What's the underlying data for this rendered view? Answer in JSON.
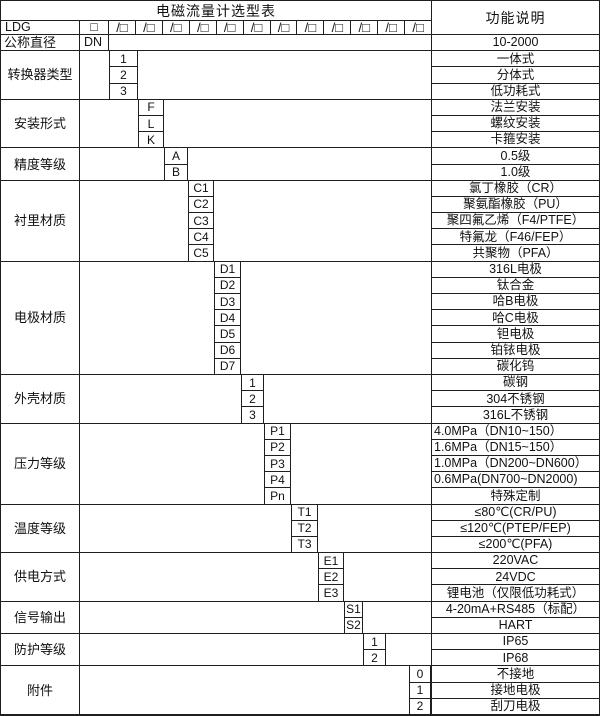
{
  "title": "电磁流量计选型表",
  "function_header": "功能说明",
  "model": {
    "prefix": "LDG",
    "first_box": "□",
    "option_box": "/□"
  },
  "dn": {
    "label": "公称直径",
    "code": "DN",
    "desc": "10-2000"
  },
  "categories": [
    {
      "label": "转换器类型",
      "options": [
        {
          "code": "1",
          "desc": "一体式"
        },
        {
          "code": "2",
          "desc": "分体式"
        },
        {
          "code": "3",
          "desc": "低功耗式"
        }
      ]
    },
    {
      "label": "安装形式",
      "options": [
        {
          "code": "F",
          "desc": "法兰安装"
        },
        {
          "code": "L",
          "desc": "螺纹安装"
        },
        {
          "code": "K",
          "desc": "卡箍安装"
        }
      ]
    },
    {
      "label": "精度等级",
      "options": [
        {
          "code": "A",
          "desc": "0.5级"
        },
        {
          "code": "B",
          "desc": "1.0级"
        }
      ]
    },
    {
      "label": "衬里材质",
      "options": [
        {
          "code": "C1",
          "desc": "氯丁橡胶（CR）"
        },
        {
          "code": "C2",
          "desc": "聚氨酯橡胶（PU）"
        },
        {
          "code": "C3",
          "desc": "聚四氟乙烯（F4/PTFE）"
        },
        {
          "code": "C4",
          "desc": "特氟龙（F46/FEP）"
        },
        {
          "code": "C5",
          "desc": "共聚物（PFA）"
        }
      ]
    },
    {
      "label": "电极材质",
      "options": [
        {
          "code": "D1",
          "desc": "316L电极"
        },
        {
          "code": "D2",
          "desc": "钛合金"
        },
        {
          "code": "D3",
          "desc": "哈B电极"
        },
        {
          "code": "D4",
          "desc": "哈C电极"
        },
        {
          "code": "D5",
          "desc": "钽电极"
        },
        {
          "code": "D6",
          "desc": "铂铱电极"
        },
        {
          "code": "D7",
          "desc": "碳化钨"
        }
      ]
    },
    {
      "label": "外壳材质",
      "options": [
        {
          "code": "1",
          "desc": "碳钢"
        },
        {
          "code": "2",
          "desc": "304不锈钢"
        },
        {
          "code": "3",
          "desc": "316L不锈钢"
        }
      ]
    },
    {
      "label": "压力等级",
      "options": [
        {
          "code": "P1",
          "desc": "4.0MPa（DN10~150）"
        },
        {
          "code": "P2",
          "desc": "1.6MPa（DN15~150）"
        },
        {
          "code": "P3",
          "desc": "1.0MPa（DN200~DN600）"
        },
        {
          "code": "P4",
          "desc": "0.6MPa(DN700~DN2000)"
        },
        {
          "code": "Pn",
          "desc": "特殊定制"
        }
      ]
    },
    {
      "label": "温度等级",
      "options": [
        {
          "code": "T1",
          "desc": "≤80℃(CR/PU)"
        },
        {
          "code": "T2",
          "desc": "≤120℃(PTEP/FEP)"
        },
        {
          "code": "T3",
          "desc": "≤200℃(PFA)"
        }
      ]
    },
    {
      "label": "供电方式",
      "options": [
        {
          "code": "E1",
          "desc": "220VAC"
        },
        {
          "code": "E2",
          "desc": "24VDC"
        },
        {
          "code": "E3",
          "desc": "锂电池（仅限低功耗式）"
        }
      ]
    },
    {
      "label": "信号输出",
      "options": [
        {
          "code": "S1",
          "desc": "4-20mA+RS485（标配）"
        },
        {
          "code": "S2",
          "desc": "HART"
        }
      ]
    },
    {
      "label": "防护等级",
      "options": [
        {
          "code": "1",
          "desc": "IP65"
        },
        {
          "code": "2",
          "desc": "IP68"
        }
      ]
    },
    {
      "label": "附件",
      "options": [
        {
          "code": "0",
          "desc": "不接地"
        },
        {
          "code": "1",
          "desc": "接地电极"
        },
        {
          "code": "2",
          "desc": "刮刀电极"
        }
      ]
    }
  ]
}
